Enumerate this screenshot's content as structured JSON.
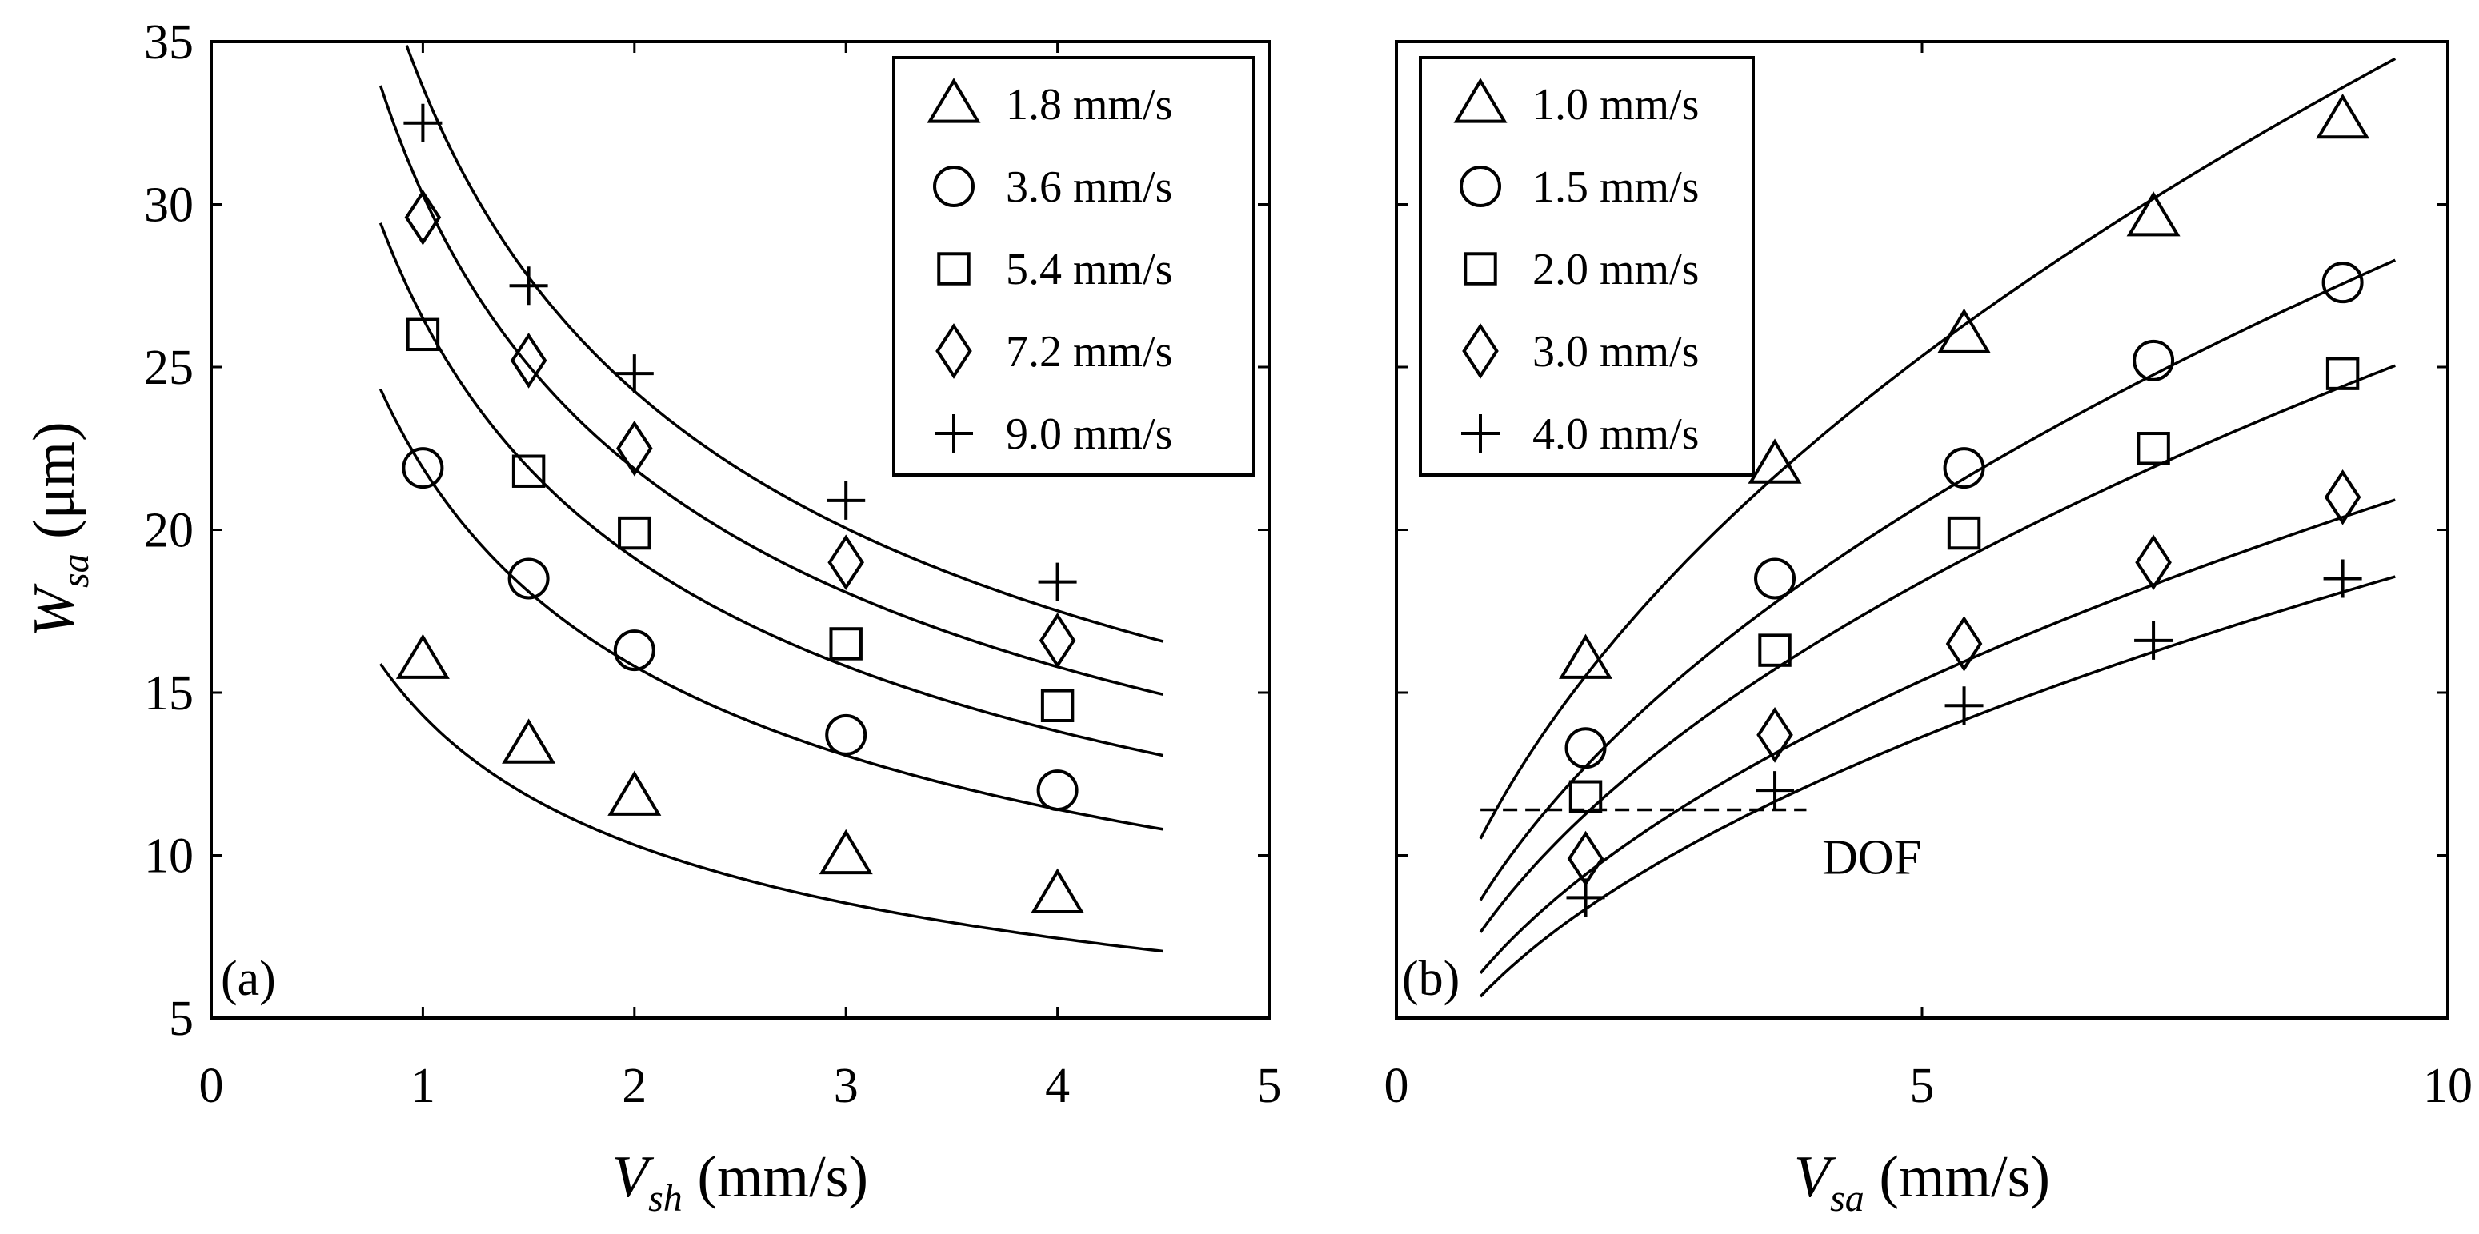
{
  "chart_data": [
    {
      "type": "scatter",
      "panel_label": "(a)",
      "xlabel_var": "V",
      "xlabel_sub": "sh",
      "xlabel_unit": "(mm/s)",
      "ylabel_var": "W",
      "ylabel_sub": "sa",
      "ylabel_unit": "(μm)",
      "xlim": [
        0,
        5
      ],
      "ylim": [
        5,
        35
      ],
      "xticks": [
        "0",
        "1",
        "2",
        "3",
        "4",
        "5"
      ],
      "yticks": [
        "5",
        "10",
        "15",
        "20",
        "25",
        "30",
        "35"
      ],
      "legend_position": "top-right",
      "series": [
        {
          "name": "1.8 mm/s",
          "marker": "triangle",
          "x": [
            1,
            1.5,
            2,
            3,
            4
          ],
          "y": [
            16.0,
            13.4,
            11.8,
            10.0,
            8.8
          ],
          "fit_a": 14.3
        },
        {
          "name": "3.6 mm/s",
          "marker": "circle",
          "x": [
            1,
            1.5,
            2,
            3,
            4
          ],
          "y": [
            21.9,
            18.5,
            16.3,
            13.7,
            12.0
          ],
          "fit_a": 21.9
        },
        {
          "name": "5.4 mm/s",
          "marker": "square",
          "x": [
            1,
            1.5,
            2,
            3,
            4
          ],
          "y": [
            26.0,
            21.8,
            19.9,
            16.5,
            14.6
          ],
          "fit_a": 26.5
        },
        {
          "name": "7.2 mm/s",
          "marker": "diamond",
          "x": [
            1,
            1.5,
            2,
            3,
            4
          ],
          "y": [
            29.6,
            25.2,
            22.5,
            19.0,
            16.6
          ],
          "fit_a": 30.3
        },
        {
          "name": "9.0 mm/s",
          "marker": "plus",
          "x": [
            1,
            1.5,
            2,
            3,
            4
          ],
          "y": [
            32.5,
            27.5,
            24.8,
            20.9,
            18.4
          ],
          "fit_a": 33.6
        }
      ],
      "fit_model": "y = a * x^-0.47",
      "fit_x_range": [
        0.8,
        4.5
      ]
    },
    {
      "type": "scatter",
      "panel_label": "(b)",
      "xlabel_var": "V",
      "xlabel_sub": "sa",
      "xlabel_unit": "(mm/s)",
      "xlim": [
        0,
        10
      ],
      "ylim": [
        5,
        35
      ],
      "xticks": [
        "0",
        "5",
        "10"
      ],
      "legend_position": "top-left",
      "annotation": {
        "text": "DOF",
        "dof_y": 11.4,
        "dof_x_range": [
          0.8,
          3.9
        ]
      },
      "series": [
        {
          "name": "1.0 mm/s",
          "marker": "triangle",
          "x": [
            1.8,
            3.6,
            5.4,
            7.2,
            9.0
          ],
          "y": [
            16.0,
            22.0,
            26.0,
            29.6,
            32.6
          ],
          "fit_a": 11.7
        },
        {
          "name": "1.5 mm/s",
          "marker": "circle",
          "x": [
            1.8,
            3.6,
            5.4,
            7.2,
            9.0
          ],
          "y": [
            13.3,
            18.5,
            21.9,
            25.2,
            27.6
          ],
          "fit_a": 9.6
        },
        {
          "name": "2.0 mm/s",
          "marker": "square",
          "x": [
            1.8,
            3.6,
            5.4,
            7.2,
            9.0
          ],
          "y": [
            11.8,
            16.3,
            19.9,
            22.5,
            24.8
          ],
          "fit_a": 8.5
        },
        {
          "name": "3.0 mm/s",
          "marker": "diamond",
          "x": [
            1.8,
            3.6,
            5.4,
            7.2,
            9.0
          ],
          "y": [
            9.9,
            13.7,
            16.5,
            19.0,
            21.0
          ],
          "fit_a": 7.1
        },
        {
          "name": "4.0 mm/s",
          "marker": "plus",
          "x": [
            1.8,
            3.6,
            5.4,
            7.2,
            9.0
          ],
          "y": [
            8.7,
            12.0,
            14.6,
            16.6,
            18.5
          ],
          "fit_a": 6.3
        }
      ],
      "fit_model": "y = a * x^0.48",
      "fit_x_range": [
        0.8,
        9.5
      ]
    }
  ]
}
